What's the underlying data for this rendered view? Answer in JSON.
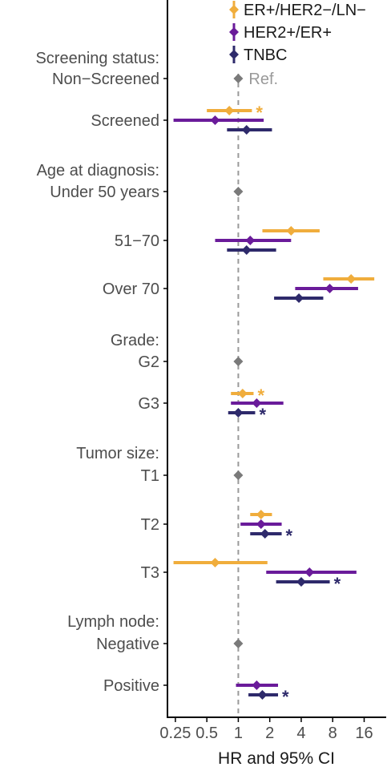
{
  "chart_data": {
    "type": "forest",
    "xlabel": "HR and 95% CI",
    "xscale": "log2",
    "xlim": [
      0.21,
      26
    ],
    "xticks": [
      "0.25",
      "0.5",
      "1",
      "2",
      "4",
      "8",
      "16"
    ],
    "tick_values": [
      0.25,
      0.5,
      1,
      2,
      4,
      8,
      16
    ],
    "reference_line": 1,
    "reference_text": "Ref.",
    "legend": [
      {
        "name": "ER+/HER2−/LN−",
        "color": "#f0ad3c"
      },
      {
        "name": "HER2+/ER+",
        "color": "#6a1b9a"
      },
      {
        "name": "TNBC",
        "color": "#2e2a6b"
      }
    ],
    "rows": [
      {
        "label": "Screening status:",
        "type": "header"
      },
      {
        "label": "Non−Screened",
        "type": "ref"
      },
      {
        "label": "Screened",
        "type": "data",
        "estimates": [
          {
            "series": 0,
            "hr": 0.82,
            "lo": 0.5,
            "hi": 1.35,
            "sig": true
          },
          {
            "series": 1,
            "hr": 0.6,
            "lo": 0.24,
            "hi": 1.75,
            "sig": false
          },
          {
            "series": 2,
            "hr": 1.2,
            "lo": 0.78,
            "hi": 2.1,
            "sig": false
          }
        ]
      },
      {
        "label": "Age at diagnosis:",
        "type": "header"
      },
      {
        "label": "Under 50 years",
        "type": "ref"
      },
      {
        "label": "51−70",
        "type": "data",
        "estimates": [
          {
            "series": 0,
            "hr": 3.2,
            "lo": 1.7,
            "hi": 6.0,
            "sig": false
          },
          {
            "series": 1,
            "hr": 1.3,
            "lo": 0.6,
            "hi": 3.2,
            "sig": false
          },
          {
            "series": 2,
            "hr": 1.2,
            "lo": 0.78,
            "hi": 2.3,
            "sig": false
          }
        ]
      },
      {
        "label": "Over 70",
        "type": "data",
        "estimates": [
          {
            "series": 0,
            "hr": 12.0,
            "lo": 6.5,
            "hi": 20.0,
            "sig": false
          },
          {
            "series": 1,
            "hr": 7.5,
            "lo": 3.5,
            "hi": 14.0,
            "sig": false
          },
          {
            "series": 2,
            "hr": 3.8,
            "lo": 2.2,
            "hi": 6.5,
            "sig": false
          }
        ]
      },
      {
        "label": "Grade:",
        "type": "header"
      },
      {
        "label": "G2",
        "type": "ref"
      },
      {
        "label": "G3",
        "type": "data",
        "estimates": [
          {
            "series": 0,
            "hr": 1.1,
            "lo": 0.85,
            "hi": 1.4,
            "sig": true
          },
          {
            "series": 1,
            "hr": 1.5,
            "lo": 0.85,
            "hi": 2.7,
            "sig": false
          },
          {
            "series": 2,
            "hr": 1.0,
            "lo": 0.8,
            "hi": 1.45,
            "sig": true
          }
        ]
      },
      {
        "label": "Tumor size:",
        "type": "header"
      },
      {
        "label": "T1",
        "type": "ref"
      },
      {
        "label": "T2",
        "type": "data",
        "estimates": [
          {
            "series": 0,
            "hr": 1.65,
            "lo": 1.3,
            "hi": 2.1,
            "sig": false
          },
          {
            "series": 1,
            "hr": 1.65,
            "lo": 1.05,
            "hi": 2.6,
            "sig": false
          },
          {
            "series": 2,
            "hr": 1.8,
            "lo": 1.3,
            "hi": 2.6,
            "sig": true
          }
        ]
      },
      {
        "label": "T3",
        "type": "data",
        "estimates": [
          {
            "series": 0,
            "hr": 0.6,
            "lo": 0.24,
            "hi": 1.9,
            "sig": false
          },
          {
            "series": 1,
            "hr": 4.8,
            "lo": 1.85,
            "hi": 13.5,
            "sig": false
          },
          {
            "series": 2,
            "hr": 4.0,
            "lo": 2.3,
            "hi": 7.5,
            "sig": true
          }
        ]
      },
      {
        "label": "Lymph node:",
        "type": "header"
      },
      {
        "label": "Negative",
        "type": "ref"
      },
      {
        "label": "Positive",
        "type": "data",
        "estimates": [
          {
            "series": 1,
            "hr": 1.5,
            "lo": 0.95,
            "hi": 2.4,
            "sig": false
          },
          {
            "series": 2,
            "hr": 1.7,
            "lo": 1.25,
            "hi": 2.4,
            "sig": true
          }
        ]
      }
    ]
  }
}
